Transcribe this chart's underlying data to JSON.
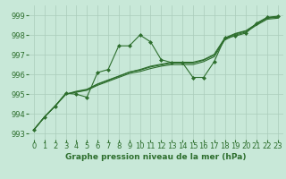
{
  "background_color": "#c8e8d8",
  "grid_color": "#aaccbb",
  "line_color": "#2d6e2d",
  "marker_color": "#2d6e2d",
  "xlabel": "Graphe pression niveau de la mer (hPa)",
  "xlabel_fontsize": 6.5,
  "tick_fontsize": 6,
  "xlim": [
    -0.5,
    23.5
  ],
  "ylim": [
    992.7,
    999.5
  ],
  "yticks": [
    993,
    994,
    995,
    996,
    997,
    998,
    999
  ],
  "xticks": [
    0,
    1,
    2,
    3,
    4,
    5,
    6,
    7,
    8,
    9,
    10,
    11,
    12,
    13,
    14,
    15,
    16,
    17,
    18,
    19,
    20,
    21,
    22,
    23
  ],
  "series1_x": [
    0,
    1,
    2,
    3,
    4,
    5,
    6,
    7,
    8,
    9,
    10,
    11,
    12,
    13,
    14,
    15,
    16,
    17,
    18,
    19,
    20,
    21,
    22,
    23
  ],
  "series1_y": [
    993.2,
    993.85,
    994.4,
    995.05,
    995.0,
    994.85,
    996.1,
    996.25,
    997.45,
    997.45,
    998.0,
    997.65,
    996.75,
    996.6,
    996.6,
    995.85,
    995.85,
    996.65,
    997.85,
    997.95,
    998.1,
    998.6,
    998.9,
    998.95
  ],
  "series2_x": [
    0,
    1,
    2,
    3,
    4,
    5,
    6,
    7,
    8,
    9,
    10,
    11,
    12,
    13,
    14,
    15,
    16,
    17,
    18,
    19,
    20,
    21,
    22,
    23
  ],
  "series2_y": [
    993.2,
    993.85,
    994.4,
    995.0,
    995.1,
    995.2,
    995.45,
    995.65,
    995.85,
    996.05,
    996.15,
    996.3,
    996.42,
    996.5,
    996.5,
    996.5,
    996.65,
    996.9,
    997.75,
    998.0,
    998.15,
    998.5,
    998.8,
    998.85
  ],
  "series3_x": [
    0,
    1,
    2,
    3,
    4,
    5,
    6,
    7,
    8,
    9,
    10,
    11,
    12,
    13,
    14,
    15,
    16,
    17,
    18,
    19,
    20,
    21,
    22,
    23
  ],
  "series3_y": [
    993.2,
    993.85,
    994.4,
    995.0,
    995.12,
    995.22,
    995.5,
    995.7,
    995.9,
    996.12,
    996.22,
    996.38,
    996.48,
    996.58,
    996.58,
    996.58,
    996.72,
    996.98,
    997.82,
    998.05,
    998.2,
    998.55,
    998.85,
    998.9
  ],
  "series4_x": [
    0,
    1,
    2,
    3,
    4,
    5,
    6,
    7,
    8,
    9,
    10,
    11,
    12,
    13,
    14,
    15,
    16,
    17,
    18,
    19,
    20,
    21,
    22,
    23
  ],
  "series4_y": [
    993.2,
    993.85,
    994.4,
    995.0,
    995.15,
    995.25,
    995.52,
    995.72,
    995.92,
    996.12,
    996.25,
    996.42,
    996.52,
    996.62,
    996.62,
    996.62,
    996.75,
    997.02,
    997.85,
    998.08,
    998.22,
    998.57,
    998.87,
    998.92
  ]
}
